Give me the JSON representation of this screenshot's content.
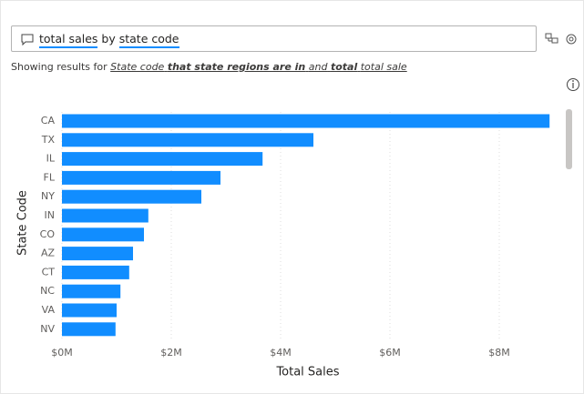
{
  "search": {
    "segments": [
      "total sales",
      "by",
      "state code"
    ]
  },
  "results": {
    "prefix": "Showing results for",
    "parts": [
      "State code",
      "that state regions are in",
      "and",
      "total",
      "total sale"
    ]
  },
  "chart_data": {
    "type": "bar",
    "orientation": "horizontal",
    "x_label": "Total Sales",
    "y_label": "State Code",
    "categories": [
      "CA",
      "TX",
      "IL",
      "FL",
      "NY",
      "IN",
      "CO",
      "AZ",
      "CT",
      "NC",
      "VA",
      "NV"
    ],
    "values": [
      8920000,
      4600000,
      3670000,
      2900000,
      2550000,
      1580000,
      1500000,
      1300000,
      1230000,
      1070000,
      1000000,
      980000
    ],
    "color": "#118dff",
    "xlim": [
      0,
      9000000
    ],
    "xticks": [
      {
        "value": 0,
        "label": "$0M"
      },
      {
        "value": 2000000,
        "label": "$2M"
      },
      {
        "value": 4000000,
        "label": "$4M"
      },
      {
        "value": 6000000,
        "label": "$6M"
      },
      {
        "value": 8000000,
        "label": "$8M"
      }
    ],
    "grid": true
  }
}
